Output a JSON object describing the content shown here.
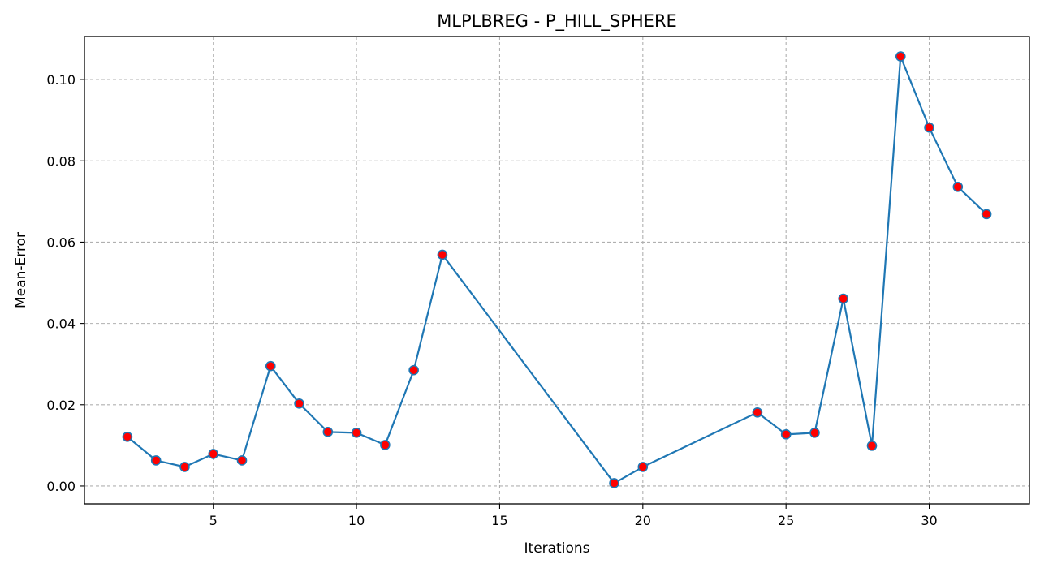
{
  "chart_data": {
    "type": "line",
    "title": "MLPLBREG - P_HILL_SPHERE",
    "xlabel": "Iterations",
    "ylabel": "Mean-Error",
    "xlim": [
      0.5,
      33.5
    ],
    "ylim": [
      -0.0044,
      0.1106
    ],
    "xticks": [
      5,
      10,
      15,
      20,
      25,
      30
    ],
    "yticks": [
      0.0,
      0.02,
      0.04,
      0.06,
      0.08,
      0.1
    ],
    "ytick_labels": [
      "0.00",
      "0.02",
      "0.04",
      "0.06",
      "0.08",
      "0.10"
    ],
    "grid": true,
    "colors": {
      "line": "#1f77b4",
      "marker_fill": "#ff0000",
      "marker_edge": "#1f77b4",
      "grid": "#b0b0b0"
    },
    "series": [
      {
        "x": [
          2,
          3,
          4,
          5,
          6,
          7,
          8,
          9,
          10,
          11,
          12,
          13,
          19,
          20,
          24,
          25,
          26,
          27,
          28,
          29,
          30,
          31,
          32
        ],
        "y": [
          0.0121,
          0.0063,
          0.0047,
          0.0079,
          0.0063,
          0.0295,
          0.0203,
          0.0133,
          0.0131,
          0.0101,
          0.0285,
          0.0569,
          0.0007,
          0.0047,
          0.0181,
          0.0127,
          0.0131,
          0.0461,
          0.0099,
          0.1057,
          0.0882,
          0.0736,
          0.0669
        ]
      }
    ]
  }
}
